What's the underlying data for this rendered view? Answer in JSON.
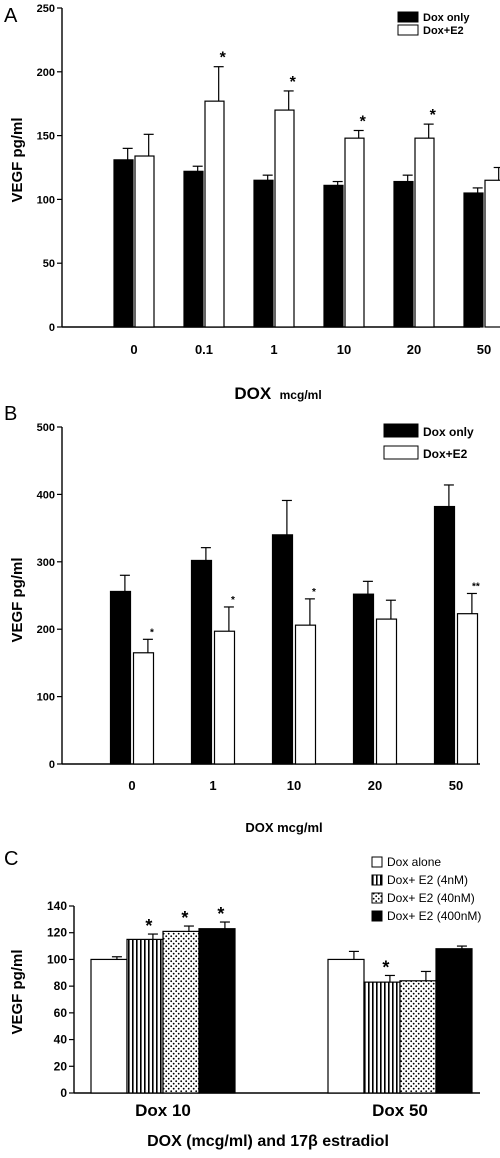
{
  "chart_data": [
    {
      "panel": "A",
      "type": "bar",
      "ylabel": "VEGF  pg/ml",
      "xlabel": "DOX",
      "xlabel_unit": "mcg/ml",
      "ylim": [
        0,
        250
      ],
      "yticks": [
        "0",
        "50",
        "100",
        "150",
        "200",
        "250"
      ],
      "categories": [
        "0",
        "0.1",
        "1",
        "10",
        "20",
        "50"
      ],
      "legend_position": "top-right",
      "series": [
        {
          "name": "Dox only",
          "fill": "#000000",
          "pattern": "solid",
          "values": [
            131,
            122,
            115,
            111,
            114,
            105
          ],
          "errors": [
            9,
            4,
            4,
            3,
            5,
            4
          ],
          "marks": [
            "",
            "",
            "",
            "",
            "",
            ""
          ]
        },
        {
          "name": "Dox+E2",
          "fill": "#ffffff",
          "pattern": "open",
          "values": [
            134,
            177,
            170,
            148,
            148,
            115
          ],
          "errors": [
            17,
            27,
            15,
            6,
            11,
            10
          ],
          "marks": [
            "",
            "*",
            "*",
            "*",
            "*",
            ""
          ]
        }
      ]
    },
    {
      "panel": "B",
      "type": "bar",
      "ylabel": "VEGF  pg/ml",
      "xlabel": "DOX mcg/ml",
      "ylim": [
        0,
        500
      ],
      "yticks": [
        "0",
        "100",
        "200",
        "300",
        "400",
        "500"
      ],
      "categories": [
        "0",
        "1",
        "10",
        "20",
        "50"
      ],
      "legend_position": "top-right",
      "series": [
        {
          "name": "Dox only",
          "fill": "#000000",
          "pattern": "solid",
          "values": [
            256,
            302,
            340,
            252,
            382
          ],
          "errors": [
            24,
            19,
            51,
            19,
            32
          ],
          "marks": [
            "",
            "",
            "",
            "",
            ""
          ]
        },
        {
          "name": "Dox+E2",
          "fill": "#ffffff",
          "pattern": "open",
          "values": [
            165,
            197,
            206,
            215,
            223
          ],
          "errors": [
            20,
            36,
            39,
            28,
            30
          ],
          "marks": [
            "*",
            "*",
            "*",
            "",
            "**"
          ]
        }
      ]
    },
    {
      "panel": "C",
      "type": "bar",
      "ylabel": "VEGF pg/ml",
      "xlabel": "DOX (mcg/ml) and 17β estradiol",
      "ylim": [
        0,
        140
      ],
      "yticks": [
        "0",
        "20",
        "40",
        "60",
        "80",
        "100",
        "120",
        "140"
      ],
      "categories": [
        "Dox 10",
        "Dox 50"
      ],
      "legend_position": "top-right",
      "series": [
        {
          "name": "Dox alone",
          "fill": "#ffffff",
          "pattern": "open",
          "values": [
            100,
            100
          ],
          "errors": [
            2,
            6
          ],
          "marks": [
            "",
            ""
          ]
        },
        {
          "name": "Dox+ E2 (4nM)",
          "fill": "#ffffff",
          "pattern": "vertical-stripes",
          "values": [
            115,
            83
          ],
          "errors": [
            4,
            5
          ],
          "marks": [
            "*",
            "*"
          ]
        },
        {
          "name": "Dox+ E2 (40nM)",
          "fill": "#ffffff",
          "pattern": "dots",
          "values": [
            121,
            84
          ],
          "errors": [
            4,
            7
          ],
          "marks": [
            "*",
            ""
          ]
        },
        {
          "name": "Dox+ E2 (400nM)",
          "fill": "#000000",
          "pattern": "solid",
          "values": [
            123,
            108
          ],
          "errors": [
            5,
            2
          ],
          "marks": [
            "*",
            ""
          ]
        }
      ]
    }
  ]
}
